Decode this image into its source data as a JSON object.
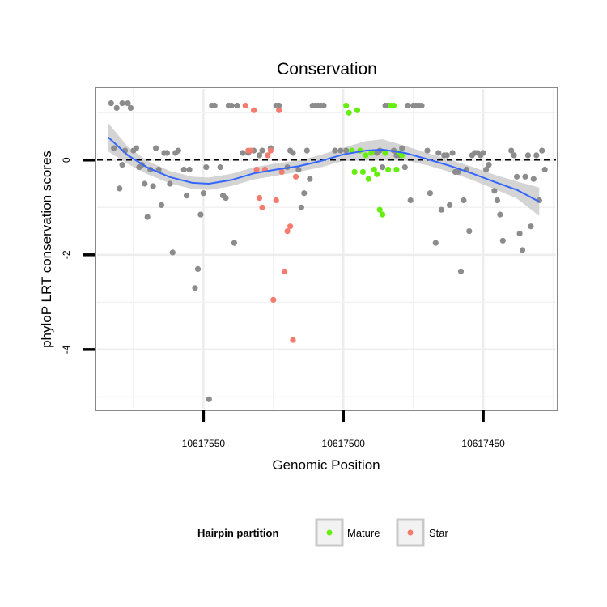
{
  "chart_data": {
    "type": "scatter",
    "title": "Conservation",
    "xlabel": "Genomic Position",
    "ylabel": "phyloP LRT conservation scores",
    "x_reversed": true,
    "xlim": [
      10617588,
      10617424
    ],
    "ylim": [
      -5.25,
      1.5
    ],
    "x_ticks": [
      10617550,
      10617500,
      10617450
    ],
    "x_tick_labels": [
      "10617550",
      "10617500",
      "10617450"
    ],
    "y_ticks": [
      0,
      -2,
      -4
    ],
    "y_tick_labels": [
      "0",
      "-2",
      "-4"
    ],
    "reference_line": {
      "y": 0,
      "style": "dashed"
    },
    "legend": {
      "title": "Hairpin partition",
      "position": "bottom",
      "entries": [
        {
          "label": "Mature",
          "color": "#66ee11"
        },
        {
          "label": "Star",
          "color": "#f47c6e"
        }
      ]
    },
    "colors": {
      "Other": "#8c8c8c",
      "Mature": "#66ee11",
      "Star": "#f47c6e",
      "smooth": "#3366ff",
      "band": "#cccccc"
    },
    "series": [
      {
        "name": "Other",
        "points": [
          [
            10617583,
            1.2
          ],
          [
            10617582,
            0.25
          ],
          [
            10617581,
            1.1
          ],
          [
            10617580,
            -0.6
          ],
          [
            10617579,
            1.2
          ],
          [
            10617579,
            -0.1
          ],
          [
            10617578,
            0.2
          ],
          [
            10617577,
            1.2
          ],
          [
            10617576,
            1.1
          ],
          [
            10617575,
            0.2
          ],
          [
            10617574,
            0.25
          ],
          [
            10617573,
            -0.15
          ],
          [
            10617572,
            -0.1
          ],
          [
            10617571,
            -0.5
          ],
          [
            10617570,
            -1.2
          ],
          [
            10617569,
            -0.2
          ],
          [
            10617568,
            -0.55
          ],
          [
            10617567,
            0.25
          ],
          [
            10617566,
            -0.2
          ],
          [
            10617565,
            -0.95
          ],
          [
            10617564,
            0.15
          ],
          [
            10617563,
            0.15
          ],
          [
            10617562,
            -0.5
          ],
          [
            10617561,
            -1.95
          ],
          [
            10617560,
            0.15
          ],
          [
            10617559,
            0.2
          ],
          [
            10617557,
            -0.2
          ],
          [
            10617556,
            -0.75
          ],
          [
            10617555,
            -0.2
          ],
          [
            10617553,
            -2.7
          ],
          [
            10617552,
            -2.3
          ],
          [
            10617551,
            -1.15
          ],
          [
            10617550,
            -0.7
          ],
          [
            10617549,
            -0.15
          ],
          [
            10617548,
            -5.05
          ],
          [
            10617547,
            1.15
          ],
          [
            10617546,
            1.15
          ],
          [
            10617544,
            -0.15
          ],
          [
            10617543,
            -0.75
          ],
          [
            10617542,
            -0.8
          ],
          [
            10617541,
            1.15
          ],
          [
            10617540,
            1.15
          ],
          [
            10617539,
            -1.75
          ],
          [
            10617538,
            1.15
          ],
          [
            10617536,
            0.15
          ],
          [
            10617534,
            0.15
          ],
          [
            10617532,
            0.2
          ],
          [
            10617530,
            0.1
          ],
          [
            10617529,
            0.2
          ],
          [
            10617526,
            0.25
          ],
          [
            10617524,
            1.15
          ],
          [
            10617523,
            1.15
          ],
          [
            10617520,
            -0.15
          ],
          [
            10617519,
            0.2
          ],
          [
            10617518,
            0.15
          ],
          [
            10617516,
            -0.2
          ],
          [
            10617515,
            -1.0
          ],
          [
            10617514,
            -0.7
          ],
          [
            10617513,
            0.2
          ],
          [
            10617512,
            -0.4
          ],
          [
            10617511,
            1.15
          ],
          [
            10617510,
            1.15
          ],
          [
            10617509,
            1.15
          ],
          [
            10617508,
            1.15
          ],
          [
            10617507,
            1.15
          ],
          [
            10617503,
            0.2
          ],
          [
            10617501,
            0.2
          ],
          [
            10617499,
            0.2
          ],
          [
            10617488,
            0.15
          ],
          [
            10617487,
            0.2
          ],
          [
            10617486,
            -0.15
          ],
          [
            10617485,
            1.15
          ],
          [
            10617484,
            1.15
          ],
          [
            10617482,
            0.2
          ],
          [
            10617481,
            0.1
          ],
          [
            10617480,
            0.1
          ],
          [
            10617479,
            0.25
          ],
          [
            10617478,
            -0.15
          ],
          [
            10617477,
            1.15
          ],
          [
            10617476,
            -0.85
          ],
          [
            10617475,
            1.15
          ],
          [
            10617474,
            1.15
          ],
          [
            10617473,
            1.15
          ],
          [
            10617472,
            1.15
          ],
          [
            10617470,
            0.2
          ],
          [
            10617469,
            -0.7
          ],
          [
            10617467,
            -1.75
          ],
          [
            10617466,
            0.15
          ],
          [
            10617465,
            -1.05
          ],
          [
            10617464,
            0.1
          ],
          [
            10617463,
            0.1
          ],
          [
            10617462,
            -0.95
          ],
          [
            10617461,
            0.15
          ],
          [
            10617460,
            -0.25
          ],
          [
            10617459,
            -0.25
          ],
          [
            10617458,
            -2.35
          ],
          [
            10617457,
            -0.85
          ],
          [
            10617456,
            -0.2
          ],
          [
            10617455,
            -1.5
          ],
          [
            10617454,
            0.1
          ],
          [
            10617453,
            0.15
          ],
          [
            10617452,
            0.15
          ],
          [
            10617451,
            0.1
          ],
          [
            10617450,
            0.15
          ],
          [
            10617449,
            -0.2
          ],
          [
            10617448,
            -0.1
          ],
          [
            10617446,
            -0.65
          ],
          [
            10617445,
            -0.85
          ],
          [
            10617444,
            -1.15
          ],
          [
            10617443,
            -1.7
          ],
          [
            10617440,
            0.2
          ],
          [
            10617439,
            0.1
          ],
          [
            10617438,
            -0.35
          ],
          [
            10617437,
            -1.55
          ],
          [
            10617436,
            -1.9
          ],
          [
            10617435,
            -0.35
          ],
          [
            10617434,
            0.1
          ],
          [
            10617433,
            -1.4
          ],
          [
            10617432,
            -0.4
          ],
          [
            10617431,
            0.1
          ],
          [
            10617430,
            -0.85
          ],
          [
            10617429,
            0.2
          ],
          [
            10617428,
            -0.2
          ]
        ]
      },
      {
        "name": "Mature",
        "points": [
          [
            10617499,
            1.15
          ],
          [
            10617498,
            1.0
          ],
          [
            10617497,
            0.2
          ],
          [
            10617496,
            -0.25
          ],
          [
            10617495,
            1.05
          ],
          [
            10617494,
            0.2
          ],
          [
            10617493,
            -0.25
          ],
          [
            10617492,
            0.1
          ],
          [
            10617491,
            -0.4
          ],
          [
            10617490,
            0.15
          ],
          [
            10617489,
            -0.2
          ],
          [
            10617488,
            -0.3
          ],
          [
            10617487,
            -1.05
          ],
          [
            10617486,
            -1.15
          ],
          [
            10617485,
            0.15
          ],
          [
            10617484,
            -0.2
          ],
          [
            10617483,
            1.15
          ],
          [
            10617482,
            1.15
          ],
          [
            10617481,
            -0.2
          ],
          [
            10617480,
            0.15
          ],
          [
            10617479,
            0.1
          ]
        ]
      },
      {
        "name": "Star",
        "points": [
          [
            10617535,
            1.15
          ],
          [
            10617534,
            0.2
          ],
          [
            10617533,
            0.2
          ],
          [
            10617532,
            1.05
          ],
          [
            10617531,
            -0.2
          ],
          [
            10617530,
            -0.8
          ],
          [
            10617529,
            -1.0
          ],
          [
            10617528,
            -0.2
          ],
          [
            10617527,
            0.1
          ],
          [
            10617526,
            0.2
          ],
          [
            10617525,
            -2.95
          ],
          [
            10617524,
            -0.85
          ],
          [
            10617523,
            1.05
          ],
          [
            10617522,
            -0.25
          ],
          [
            10617521,
            -2.35
          ],
          [
            10617520,
            -1.5
          ],
          [
            10617519,
            -1.4
          ],
          [
            10617518,
            -3.8
          ],
          [
            10617517,
            -0.35
          ]
        ]
      }
    ],
    "smooth_curve": [
      [
        10617584,
        0.48
      ],
      [
        10617577,
        0.1
      ],
      [
        10617570,
        -0.16
      ],
      [
        10617562,
        -0.36
      ],
      [
        10617554,
        -0.48
      ],
      [
        10617548,
        -0.5
      ],
      [
        10617540,
        -0.42
      ],
      [
        10617532,
        -0.28
      ],
      [
        10617524,
        -0.2
      ],
      [
        10617516,
        -0.13
      ],
      [
        10617508,
        -0.02
      ],
      [
        10617500,
        0.12
      ],
      [
        10617492,
        0.2
      ],
      [
        10617486,
        0.22
      ],
      [
        10617478,
        0.15
      ],
      [
        10617470,
        0.02
      ],
      [
        10617462,
        -0.12
      ],
      [
        10617454,
        -0.28
      ],
      [
        10617446,
        -0.46
      ],
      [
        10617438,
        -0.63
      ],
      [
        10617430,
        -0.88
      ]
    ],
    "smooth_band_halfwidth": [
      0.3,
      0.18,
      0.14,
      0.13,
      0.13,
      0.13,
      0.13,
      0.13,
      0.13,
      0.12,
      0.13,
      0.14,
      0.2,
      0.22,
      0.15,
      0.13,
      0.13,
      0.14,
      0.15,
      0.18,
      0.3
    ]
  }
}
